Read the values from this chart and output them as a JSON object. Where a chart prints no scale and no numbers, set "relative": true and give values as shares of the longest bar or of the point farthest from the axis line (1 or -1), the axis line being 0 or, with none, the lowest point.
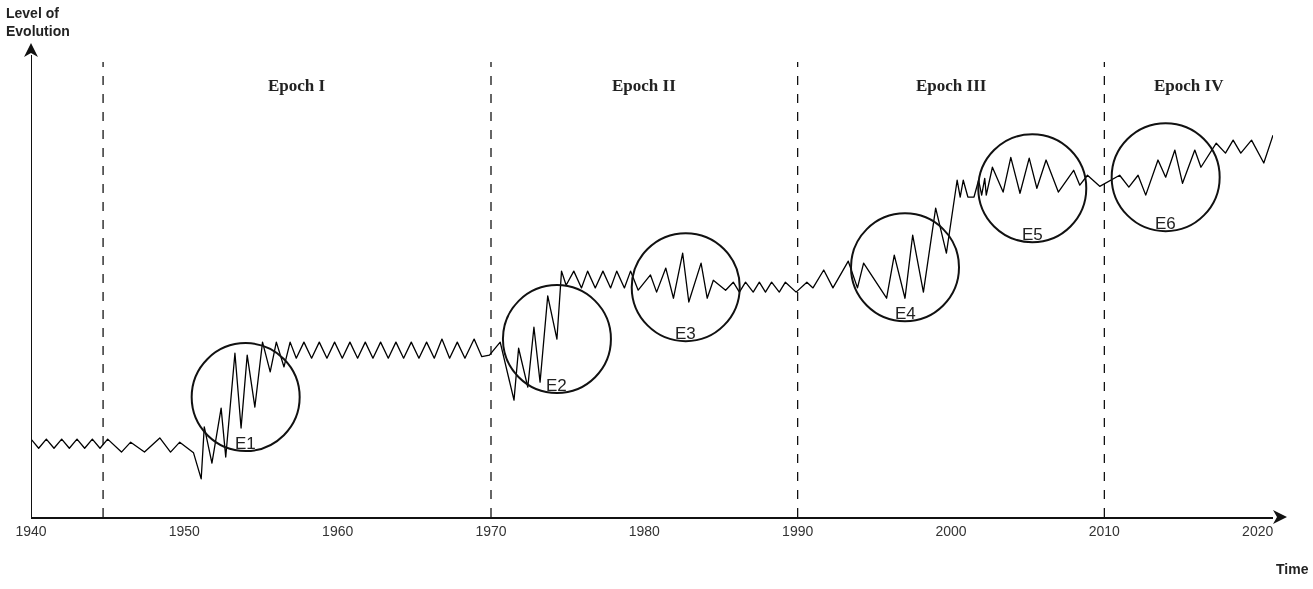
{
  "chart_data": {
    "type": "line",
    "relative": true,
    "xlabel": "Time",
    "xlim": [
      1940,
      2021
    ],
    "xticks": [
      1940,
      1950,
      1960,
      1970,
      1980,
      1990,
      2000,
      2010,
      2020
    ],
    "grid": false,
    "marker": "none",
    "line_style": "solid",
    "x": [
      1940,
      1940.5,
      1941,
      1941.5,
      1942,
      1942.5,
      1943,
      1943.5,
      1944,
      1944.5,
      1945,
      1945.9,
      1946.5,
      1947.4,
      1948.4,
      1949.1,
      1949.7,
      1950.6,
      1951.1,
      1951.3,
      1951.8,
      1952.4,
      1952.7,
      1953.3,
      1953.7,
      1954.1,
      1954.6,
      1955.1,
      1955.6,
      1956.0,
      1956.5,
      1956.9,
      1957.3,
      1957.8,
      1958.3,
      1958.8,
      1959.3,
      1959.8,
      1960.3,
      1960.8,
      1961.3,
      1961.8,
      1962.3,
      1962.8,
      1963.3,
      1963.8,
      1964.3,
      1964.8,
      1965.3,
      1965.8,
      1966.3,
      1966.8,
      1967.3,
      1967.8,
      1968.3,
      1968.9,
      1969.4,
      1969.9,
      1970.6,
      1971.5,
      1971.8,
      1972.4,
      1972.8,
      1973.2,
      1973.7,
      1974.3,
      1974.6,
      1974.9,
      1975.4,
      1975.9,
      1976.3,
      1976.8,
      1977.3,
      1977.8,
      1978.2,
      1978.7,
      1979.1,
      1979.6,
      1980.4,
      1980.8,
      1981.4,
      1981.9,
      1982.5,
      1982.9,
      1983.7,
      1984.1,
      1984.5,
      1985.3,
      1985.8,
      1986.2,
      1986.6,
      1987.1,
      1987.5,
      1987.9,
      1988.3,
      1988.8,
      1989.2,
      1989.9,
      1990.6,
      1991.0,
      1991.7,
      1992.3,
      1993.3,
      1993.9,
      1994.3,
      1995.8,
      1996.3,
      1997.0,
      1997.5,
      1998.2,
      1999.0,
      1999.7,
      2000.4,
      2000.6,
      2000.8,
      2001.1,
      2001.5,
      2001.8,
      2002.0,
      2002.2,
      2002.3,
      2002.7,
      2003.4,
      2003.9,
      2004.5,
      2005.1,
      2005.6,
      2006.2,
      2007.0,
      2008.0,
      2008.4,
      2008.9,
      2009.7,
      2011.0,
      2011.6,
      2012.2,
      2012.7,
      2013.5,
      2014.0,
      2014.6,
      2015.1,
      2015.9,
      2016.3,
      2017.3,
      2017.9,
      2018.4,
      2018.9,
      2019.6,
      2020.4,
      2021.0
    ],
    "values": [
      0.204,
      0.18,
      0.204,
      0.18,
      0.204,
      0.18,
      0.204,
      0.18,
      0.204,
      0.18,
      0.204,
      0.17,
      0.196,
      0.17,
      0.207,
      0.17,
      0.196,
      0.168,
      0.1,
      0.236,
      0.141,
      0.285,
      0.157,
      0.429,
      0.233,
      0.424,
      0.288,
      0.458,
      0.38,
      0.458,
      0.393,
      0.458,
      0.416,
      0.458,
      0.416,
      0.458,
      0.416,
      0.458,
      0.416,
      0.458,
      0.416,
      0.458,
      0.416,
      0.458,
      0.416,
      0.458,
      0.416,
      0.458,
      0.416,
      0.458,
      0.416,
      0.466,
      0.416,
      0.458,
      0.416,
      0.466,
      0.42,
      0.424,
      0.458,
      0.306,
      0.442,
      0.34,
      0.497,
      0.353,
      0.579,
      0.466,
      0.644,
      0.607,
      0.644,
      0.6,
      0.644,
      0.6,
      0.644,
      0.6,
      0.644,
      0.6,
      0.644,
      0.594,
      0.634,
      0.589,
      0.652,
      0.573,
      0.691,
      0.563,
      0.665,
      0.573,
      0.62,
      0.594,
      0.615,
      0.589,
      0.615,
      0.589,
      0.615,
      0.589,
      0.615,
      0.589,
      0.615,
      0.589,
      0.615,
      0.6,
      0.647,
      0.6,
      0.67,
      0.6,
      0.665,
      0.573,
      0.686,
      0.573,
      0.738,
      0.589,
      0.809,
      0.691,
      0.882,
      0.838,
      0.882,
      0.838,
      0.838,
      0.882,
      0.843,
      0.887,
      0.843,
      0.916,
      0.851,
      0.942,
      0.848,
      0.94,
      0.861,
      0.935,
      0.851,
      0.908,
      0.869,
      0.895,
      0.866,
      0.895,
      0.864,
      0.895,
      0.843,
      0.935,
      0.89,
      0.961,
      0.874,
      0.961,
      0.916,
      0.979,
      0.953,
      0.987,
      0.953,
      0.987,
      0.927,
      1.0
    ],
    "color": "#000000",
    "ref_lines": [
      {
        "axis": "x",
        "value": 1944.7,
        "line_style": "dashed",
        "color": "#000000"
      },
      {
        "axis": "x",
        "value": 1970,
        "line_style": "dashed",
        "color": "#000000"
      },
      {
        "axis": "x",
        "value": 1990,
        "line_style": "dashed",
        "color": "#000000"
      },
      {
        "axis": "x",
        "value": 2010,
        "line_style": "dashed",
        "color": "#000000"
      }
    ],
    "annotations": [
      "Level of Evolution",
      "Epoch I",
      "Epoch II",
      "Epoch III",
      "Epoch IV",
      {
        "text": "E1",
        "x": 1954.0,
        "y": 0.314
      },
      {
        "text": "E2",
        "x": 1974.3,
        "y": 0.466
      },
      {
        "text": "E3",
        "x": 1982.7,
        "y": 0.602
      },
      {
        "text": "E4",
        "x": 1997.0,
        "y": 0.654
      },
      {
        "text": "E5",
        "x": 2005.3,
        "y": 0.861
      },
      {
        "text": "E6",
        "x": 2014.0,
        "y": 0.89
      }
    ]
  }
}
